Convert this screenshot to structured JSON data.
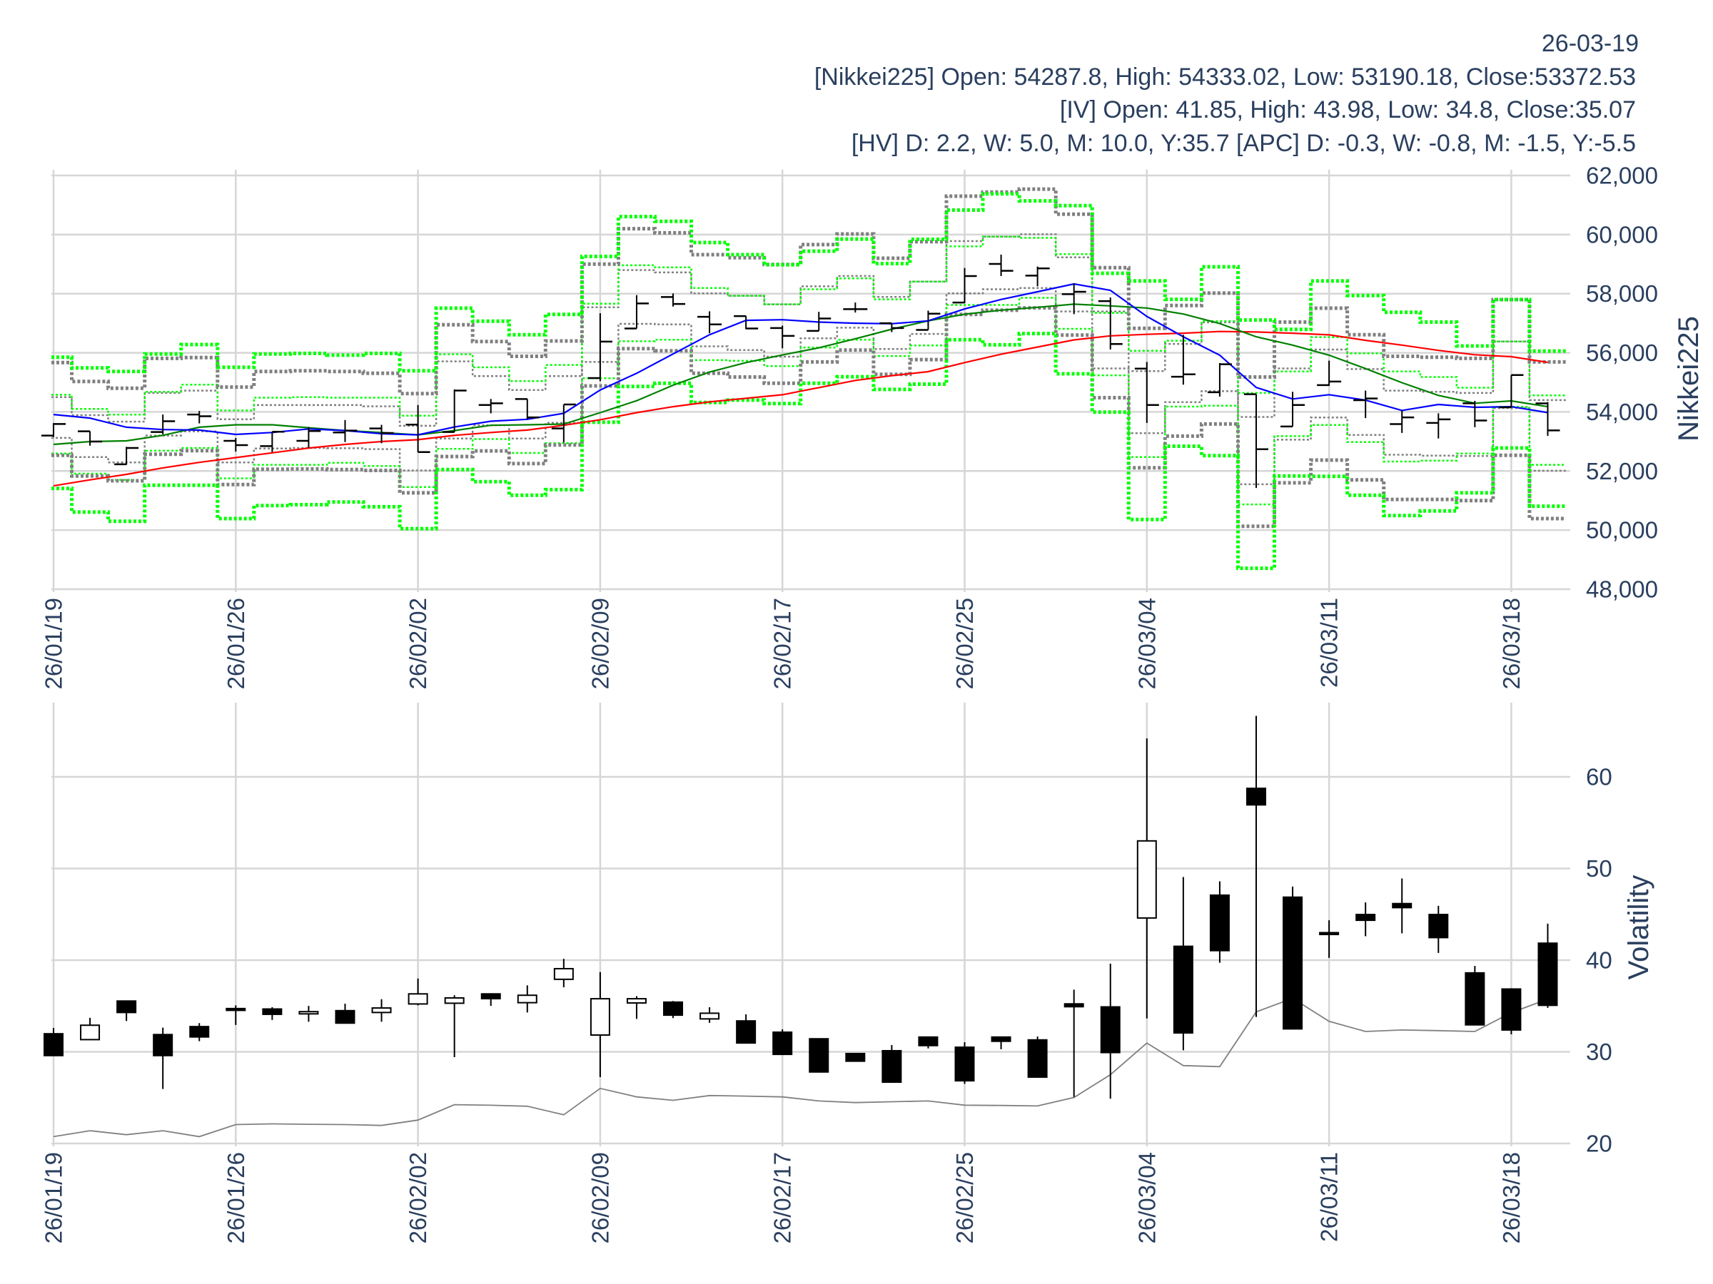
{
  "header": {
    "date": "26-03-19",
    "nikkei_line": "[Nikkei225] Open: 54287.8, High: 54333.02, Low: 53190.18, Close:53372.53",
    "iv_line": "[IV] Open: 41.85, High: 43.98, Low: 34.8, Close:35.07",
    "hv_line": "[HV] D: 2.2, W: 5.0, M: 10.0, Y:35.7 [APC] D: -0.3, W: -0.8, M: -1.5, Y:-5.5"
  },
  "colors": {
    "text": "#2a3f5f",
    "grid": "#d6d6d6",
    "bar": "#000000",
    "ma_short": "#0000ff",
    "ma_mid": "#008000",
    "ma_long": "#ff0000",
    "band_iv": "#00ff00",
    "band_hv": "#808080",
    "hv_line": "#808080"
  },
  "chart_data": [
    {
      "type": "ohlc",
      "ylabel": "Nikkei225",
      "ylim": [
        48000,
        62000
      ],
      "yticks": [
        48000,
        50000,
        52000,
        54000,
        56000,
        58000,
        60000,
        62000
      ],
      "ytick_labels": [
        "48,000",
        "50,000",
        "52,000",
        "54,000",
        "56,000",
        "58,000",
        "60,000",
        "62,000"
      ],
      "xtick_labels": [
        "26/01/19",
        "26/01/26",
        "26/02/02",
        "26/02/09",
        "26/02/17",
        "26/02/25",
        "26/03/04",
        "26/03/11",
        "26/03/18"
      ],
      "xtick_index": [
        0,
        5,
        10,
        15,
        20,
        25,
        30,
        35,
        40
      ],
      "categories": [
        "26/01/19",
        "26/01/20",
        "26/01/21",
        "26/01/22",
        "26/01/23",
        "26/01/26",
        "26/01/27",
        "26/01/28",
        "26/01/29",
        "26/01/30",
        "26/02/02",
        "26/02/03",
        "26/02/04",
        "26/02/05",
        "26/02/06",
        "26/02/09",
        "26/02/10",
        "26/02/12",
        "26/02/13",
        "26/02/16",
        "26/02/17",
        "26/02/18",
        "26/02/19",
        "26/02/20",
        "26/02/24",
        "26/02/25",
        "26/02/26",
        "26/02/27",
        "26/03/02",
        "26/03/03",
        "26/03/04",
        "26/03/05",
        "26/03/06",
        "26/03/09",
        "26/03/10",
        "26/03/11",
        "26/03/12",
        "26/03/13",
        "26/03/16",
        "26/03/17",
        "26/03/18",
        "26/03/19"
      ],
      "open": [
        53200,
        53344,
        52227,
        53320,
        53911,
        53020,
        52842,
        53020,
        53304,
        53441,
        53571,
        53320,
        54235,
        54437,
        53441,
        55145,
        56822,
        57887,
        57218,
        57242,
        56838,
        56742,
        57476,
        57000,
        56774,
        57701,
        59008,
        58613,
        57984,
        57750,
        55466,
        55190,
        54664,
        54599,
        53506,
        54907,
        54397,
        53587,
        53628,
        54292,
        54154,
        54287.8
      ],
      "high": [
        53620,
        53344,
        52818,
        53911,
        54032,
        53117,
        53328,
        53490,
        53725,
        53563,
        54235,
        54761,
        54437,
        54437,
        54251,
        57338,
        57951,
        58008,
        57403,
        57242,
        56919,
        57387,
        57702,
        57000,
        57427,
        58871,
        59323,
        58919,
        58355,
        57871,
        55692,
        56607,
        55652,
        54599,
        54680,
        55733,
        54721,
        54049,
        53952,
        54373,
        55247,
        54333.02
      ],
      "low": [
        53150,
        52858,
        52211,
        53239,
        53611,
        52656,
        52640,
        52777,
        52980,
        52940,
        52640,
        53320,
        53952,
        53749,
        52964,
        55040,
        56822,
        57564,
        56661,
        56798,
        56153,
        56742,
        57363,
        56701,
        56774,
        57685,
        58597,
        58250,
        57306,
        56113,
        53628,
        54923,
        54518,
        51425,
        53506,
        54883,
        53790,
        53288,
        53101,
        53482,
        54154,
        53190.18
      ],
      "close": [
        53590,
        52996,
        52778,
        53684,
        53854,
        52875,
        53328,
        53352,
        53369,
        53287,
        52640,
        54721,
        54292,
        53814,
        54251,
        56379,
        57669,
        57653,
        56960,
        56822,
        56572,
        57161,
        57476,
        56838,
        57322,
        58597,
        58774,
        58855,
        58065,
        56298,
        54235,
        55271,
        55611,
        52737,
        54235,
        55028,
        54454,
        53814,
        53749,
        53709,
        55247,
        53372.53
      ],
      "ma_short": [
        53911,
        53790,
        53482,
        53401,
        53385,
        53239,
        53304,
        53425,
        53369,
        53263,
        53223,
        53490,
        53684,
        53749,
        53952,
        54742,
        55307,
        55960,
        56613,
        57097,
        57120,
        57040,
        57000,
        56984,
        57080,
        57484,
        57806,
        58065,
        58331,
        58113,
        57231,
        56543,
        55919,
        54826,
        54437,
        54583,
        54397,
        54049,
        54251,
        54154,
        54178,
        53976
      ],
      "ma_mid": [
        52899,
        52996,
        53020,
        53207,
        53482,
        53563,
        53563,
        53466,
        53369,
        53304,
        53223,
        53369,
        53547,
        53563,
        53587,
        53975,
        54379,
        54903,
        55347,
        55669,
        55927,
        56169,
        56476,
        56798,
        57080,
        57306,
        57443,
        57540,
        57645,
        57588,
        57514,
        57312,
        56988,
        56543,
        56259,
        55919,
        55466,
        54988,
        54559,
        54292,
        54373,
        54178
      ],
      "ma_long": [
        51498,
        51700,
        51887,
        52105,
        52292,
        52453,
        52615,
        52778,
        52899,
        52996,
        53060,
        53207,
        53304,
        53385,
        53547,
        53734,
        53975,
        54177,
        54339,
        54459,
        54580,
        54822,
        55064,
        55226,
        55363,
        55669,
        55952,
        56194,
        56436,
        56573,
        56624,
        56664,
        56721,
        56704,
        56664,
        56607,
        56421,
        56259,
        56081,
        55935,
        55870,
        55676
      ],
      "bands": {
        "iv_outer_upper": [
          55850,
          55490,
          55370,
          55960,
          56280,
          55510,
          55960,
          55980,
          55920,
          55980,
          55390,
          57510,
          57070,
          56610,
          57300,
          59260,
          60610,
          60450,
          59730,
          59320,
          58980,
          59440,
          59850,
          59020,
          59840,
          60830,
          61380,
          61140,
          60980,
          58690,
          58430,
          57810,
          58910,
          57110,
          56790,
          58430,
          57940,
          57370,
          57040,
          56230,
          57800,
          56060
        ],
        "hv_outer_upper": [
          55670,
          55030,
          54800,
          55810,
          55840,
          54840,
          55370,
          55390,
          55370,
          55310,
          54620,
          56950,
          56380,
          55880,
          56400,
          59000,
          60200,
          60060,
          59320,
          59220,
          58990,
          59660,
          60020,
          59200,
          59760,
          61300,
          61440,
          61540,
          60690,
          58880,
          56830,
          57600,
          58020,
          55180,
          57040,
          57510,
          56610,
          55880,
          55850,
          55810,
          57800,
          55690
        ],
        "iv_inner_upper": [
          54580,
          54100,
          53910,
          54680,
          54920,
          54050,
          54480,
          54500,
          54480,
          54480,
          53870,
          55950,
          55510,
          55040,
          55590,
          57660,
          58960,
          58890,
          58190,
          57930,
          57640,
          58150,
          58520,
          57810,
          58410,
          59600,
          59930,
          59890,
          59340,
          57350,
          56070,
          56410,
          57070,
          54640,
          55370,
          56530,
          55980,
          55370,
          55180,
          54820,
          56380,
          54560
        ],
        "hv_inner_upper": [
          54500,
          53890,
          53670,
          54640,
          54720,
          53750,
          54230,
          54230,
          54230,
          54190,
          53530,
          55710,
          55210,
          54740,
          55210,
          57540,
          58800,
          58720,
          58010,
          57930,
          57640,
          58250,
          58600,
          57890,
          58410,
          59780,
          59930,
          60010,
          59230,
          57400,
          55380,
          56300,
          57030,
          53830,
          55470,
          56110,
          55450,
          54720,
          54680,
          54640,
          56380,
          54400
        ],
        "hv_inner_lower": [
          53120,
          52470,
          52290,
          53200,
          53340,
          52290,
          52760,
          52780,
          52770,
          52740,
          52020,
          53100,
          53550,
          53100,
          53630,
          55690,
          56980,
          56960,
          56220,
          56090,
          55870,
          56490,
          56850,
          56130,
          56640,
          58010,
          58150,
          58190,
          57400,
          55470,
          53280,
          54330,
          54700,
          51550,
          53060,
          53810,
          53220,
          52550,
          52520,
          52510,
          54130,
          52010
        ],
        "iv_inner_lower": [
          52590,
          51910,
          51700,
          52690,
          52780,
          51750,
          52210,
          52210,
          52280,
          52170,
          51460,
          52750,
          53080,
          52610,
          52940,
          55140,
          56390,
          56440,
          55750,
          55730,
          55550,
          56180,
          56440,
          55890,
          56250,
          57620,
          57620,
          57860,
          56810,
          55240,
          52470,
          54180,
          54210,
          50870,
          53180,
          53560,
          52980,
          52320,
          52350,
          52590,
          54170,
          52210
        ],
        "hv_outer_lower": [
          52530,
          51830,
          51670,
          52570,
          52690,
          51540,
          52060,
          52070,
          52050,
          52020,
          51260,
          52490,
          52680,
          52250,
          52880,
          54880,
          56140,
          56070,
          55310,
          55180,
          54970,
          55690,
          56090,
          55270,
          55770,
          57300,
          57440,
          57520,
          56600,
          54480,
          52110,
          53180,
          53590,
          50130,
          51600,
          52370,
          51700,
          51040,
          51040,
          51000,
          52530,
          50390
        ],
        "iv_outer_lower": [
          51410,
          50610,
          50300,
          51520,
          51520,
          50390,
          50830,
          50860,
          50950,
          50790,
          50050,
          52050,
          51640,
          51180,
          51370,
          53650,
          54860,
          54970,
          54320,
          54400,
          54280,
          54970,
          55190,
          54760,
          54940,
          56440,
          56270,
          56650,
          55290,
          53990,
          50360,
          52840,
          52520,
          48710,
          51830,
          51820,
          51180,
          50490,
          50650,
          51260,
          52780,
          50810
        ]
      }
    },
    {
      "type": "candlestick",
      "ylabel": "Volatility",
      "ylim": [
        20,
        60
      ],
      "yticks": [
        20,
        30,
        40,
        50,
        60
      ],
      "ytick_labels": [
        "20",
        "30",
        "40",
        "50",
        "60"
      ],
      "xtick_labels": [
        "26/01/19",
        "26/01/26",
        "26/02/02",
        "26/02/09",
        "26/02/17",
        "26/02/25",
        "26/03/04",
        "26/03/11",
        "26/03/18"
      ],
      "xtick_index": [
        0,
        5,
        10,
        15,
        20,
        25,
        30,
        35,
        40
      ],
      "iv_open": [
        31.97,
        31.33,
        35.54,
        31.88,
        32.75,
        34.72,
        34.67,
        34.14,
        34.49,
        34.29,
        35.22,
        35.3,
        36.32,
        35.36,
        37.91,
        31.83,
        35.33,
        35.42,
        33.59,
        33.37,
        32.14,
        31.42,
        29.81,
        30.12,
        31.61,
        30.5,
        31.61,
        31.3,
        35.23,
        34.9,
        44.6,
        41.51,
        47.09,
        58.74,
        46.87,
        43.0,
        44.98,
        46.17,
        44.98,
        38.61,
        36.85,
        41.85
      ],
      "iv_high": [
        32.61,
        33.71,
        35.54,
        32.64,
        33.13,
        35.07,
        34.87,
        35.01,
        35.25,
        35.74,
        38.0,
        36.17,
        36.32,
        37.25,
        40.14,
        38.7,
        36.07,
        35.54,
        34.86,
        34.09,
        32.45,
        31.42,
        29.81,
        30.74,
        31.61,
        31.05,
        31.67,
        31.67,
        36.78,
        39.62,
        64.19,
        49.07,
        48.6,
        66.65,
        48.03,
        44.35,
        46.3,
        48.91,
        45.92,
        39.37,
        36.94,
        43.98
      ],
      "iv_low": [
        29.59,
        31.33,
        33.36,
        25.94,
        31.16,
        32.93,
        33.48,
        33.28,
        33.13,
        33.28,
        35.07,
        29.42,
        35.01,
        34.29,
        37.04,
        27.24,
        33.59,
        33.68,
        33.16,
        30.96,
        29.72,
        27.8,
        28.98,
        26.69,
        30.37,
        26.5,
        30.28,
        27.24,
        25.08,
        24.88,
        33.64,
        30.17,
        39.72,
        33.8,
        32.5,
        40.25,
        42.61,
        42.93,
        40.79,
        32.94,
        31.91,
        34.8
      ],
      "iv_close": [
        29.59,
        32.9,
        34.29,
        29.59,
        31.62,
        34.52,
        34.09,
        34.38,
        33.13,
        34.78,
        36.32,
        35.88,
        35.8,
        36.17,
        39.07,
        35.79,
        35.79,
        34.0,
        34.21,
        30.96,
        29.72,
        27.8,
        28.98,
        26.69,
        30.68,
        26.84,
        31.15,
        27.24,
        34.92,
        29.92,
        53.01,
        32.06,
        41.04,
        56.94,
        32.5,
        42.8,
        44.35,
        45.73,
        42.46,
        32.94,
        32.38,
        35.07
      ],
      "hv": [
        20.75,
        21.39,
        20.96,
        21.39,
        20.75,
        22.06,
        22.14,
        22.09,
        22.06,
        21.97,
        22.55,
        24.23,
        24.17,
        24.06,
        23.13,
        26.01,
        25.08,
        24.71,
        25.23,
        25.17,
        25.08,
        24.64,
        24.46,
        24.55,
        24.64,
        24.18,
        24.15,
        24.09,
        25.02,
        27.5,
        30.96,
        28.5,
        28.38,
        34.36,
        35.84,
        33.32,
        32.22,
        32.38,
        32.31,
        32.22,
        34.27,
        35.75
      ]
    }
  ]
}
